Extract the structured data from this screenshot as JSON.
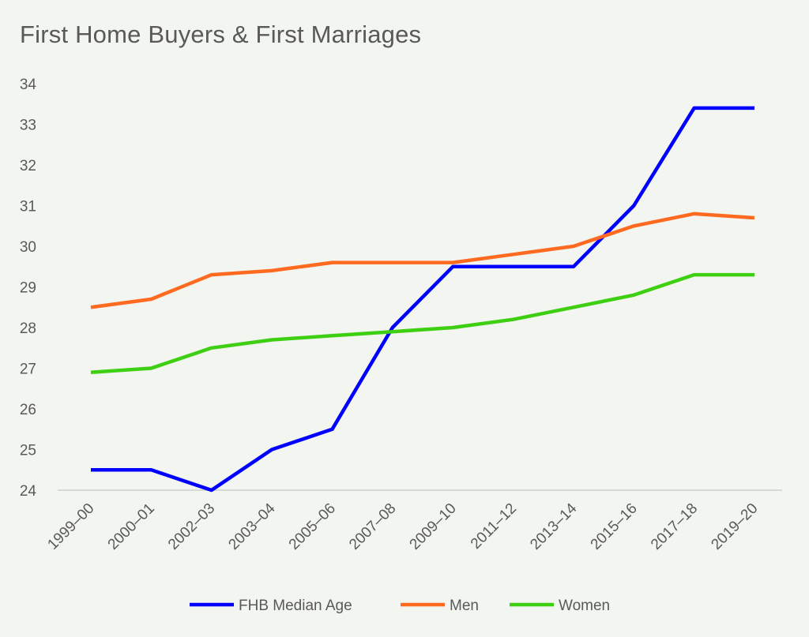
{
  "chart_data": {
    "type": "line",
    "title": "First Home Buyers & First Marriages",
    "xlabel": "",
    "ylabel": "",
    "categories": [
      "1999–00",
      "2000–01",
      "2002–03",
      "2003–04",
      "2005–06",
      "2007–08",
      "2009–10",
      "2011–12",
      "2013–14",
      "2015–16",
      "2017–18",
      "2019–20"
    ],
    "y_ticks": [
      "24",
      "25",
      "26",
      "27",
      "28",
      "29",
      "30",
      "31",
      "32",
      "33",
      "34"
    ],
    "ylim": [
      24,
      34
    ],
    "grid": false,
    "legend_position": "bottom",
    "series": [
      {
        "name": "FHB Median Age",
        "color": "#0000ff",
        "values": [
          24.5,
          24.5,
          24.0,
          25.0,
          25.5,
          28.0,
          29.5,
          29.5,
          29.5,
          31.0,
          33.4,
          33.4
        ]
      },
      {
        "name": "Men",
        "color": "#ff6a21",
        "values": [
          28.5,
          28.7,
          29.3,
          29.4,
          29.6,
          29.6,
          29.6,
          29.8,
          30.0,
          30.5,
          30.8,
          30.7
        ]
      },
      {
        "name": "Women",
        "color": "#3fcf12",
        "values": [
          26.9,
          27.0,
          27.5,
          27.7,
          27.8,
          27.9,
          28.0,
          28.2,
          28.5,
          28.8,
          29.3,
          29.3
        ]
      }
    ]
  }
}
